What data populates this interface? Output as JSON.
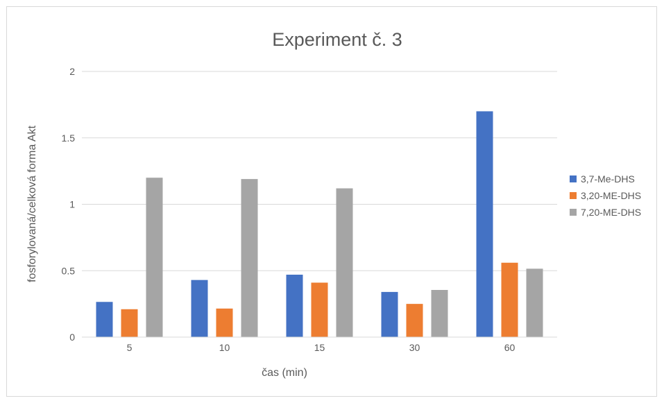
{
  "chart_data": {
    "type": "bar",
    "title": "Experiment č. 3",
    "xlabel": "čas (min)",
    "ylabel": "fosforylovaná/celková forma Akt",
    "categories": [
      "5",
      "10",
      "15",
      "30",
      "60"
    ],
    "ylim": [
      0,
      2
    ],
    "yticks": [
      "0",
      "0.5",
      "1",
      "1.5",
      "2"
    ],
    "grid": true,
    "legend_position": "right",
    "series": [
      {
        "name": "3,7-Me-DHS",
        "color": "#4472c4",
        "values": [
          0.265,
          0.43,
          0.47,
          0.34,
          1.7
        ]
      },
      {
        "name": "3,20-ME-DHS",
        "color": "#ed7d31",
        "values": [
          0.21,
          0.215,
          0.41,
          0.25,
          0.56
        ]
      },
      {
        "name": "7,20-ME-DHS",
        "color": "#a5a5a5",
        "values": [
          1.2,
          1.19,
          1.12,
          0.355,
          0.515
        ]
      }
    ]
  }
}
